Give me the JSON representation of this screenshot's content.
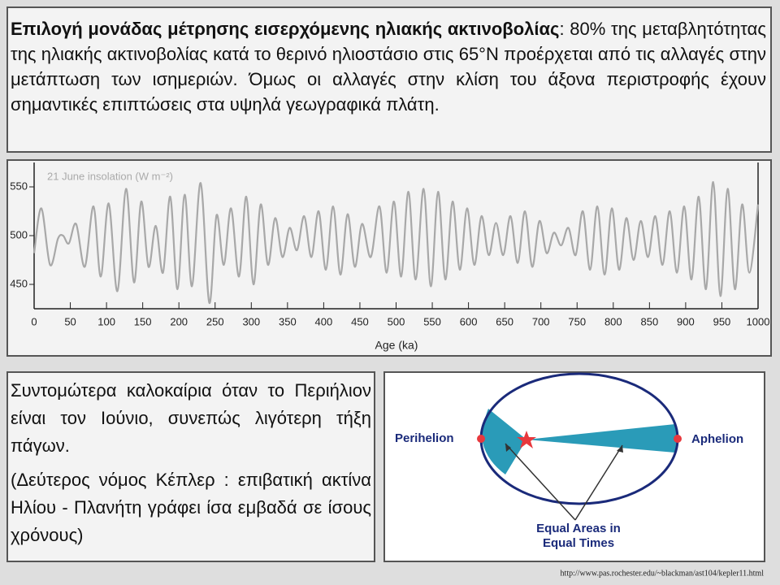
{
  "header": {
    "title": "Επιλογή μονάδας μέτρησης  εισερχόμενης ηλιακής ακτινοβολίας",
    "text": ": 80% της μεταβλητότητας της ηλιακής ακτινοβολίας κατά το θερινό ηλιοστάσιο στις 65°N προέρχεται από τις αλλαγές στην μετάπτωση των ισημεριών. Όμως οι αλλαγές στην κλίση του άξονα περιστροφής έχουν σημαντικές επιπτώσεις στα υψηλά γεωγραφικά πλάτη."
  },
  "chart_data": {
    "type": "line",
    "title": "21 June insolation (W m⁻²)",
    "x_label": "Age (ka)",
    "x": [
      0,
      10,
      22,
      33,
      40,
      48,
      58,
      70,
      82,
      92,
      103,
      115,
      127,
      138,
      148,
      158,
      168,
      178,
      188,
      198,
      208,
      218,
      230,
      242,
      252,
      262,
      272,
      283,
      293,
      303,
      313,
      323,
      333,
      343,
      353,
      363,
      373,
      383,
      393,
      403,
      413,
      423,
      433,
      443,
      453,
      465,
      477,
      487,
      497,
      507,
      517,
      527,
      538,
      548,
      558,
      568,
      578,
      588,
      598,
      608,
      618,
      628,
      638,
      648,
      658,
      668,
      678,
      688,
      698,
      708,
      718,
      728,
      738,
      748,
      758,
      768,
      778,
      788,
      798,
      808,
      818,
      828,
      838,
      848,
      858,
      868,
      878,
      888,
      898,
      908,
      918,
      928,
      938,
      948,
      958,
      968,
      978,
      988,
      1000
    ],
    "series": [
      {
        "name": "21 June insolation",
        "color": "#a8a8a8",
        "values": [
          482,
          528,
          470,
          497,
          500,
          492,
          512,
          468,
          530,
          458,
          533,
          443,
          548,
          452,
          535,
          468,
          510,
          462,
          540,
          445,
          542,
          448,
          554,
          431,
          521,
          470,
          528,
          458,
          540,
          450,
          532,
          470,
          518,
          478,
          508,
          485,
          520,
          478,
          525,
          465,
          530,
          460,
          522,
          468,
          512,
          478,
          530,
          462,
          535,
          458,
          545,
          455,
          548,
          448,
          545,
          455,
          535,
          465,
          528,
          470,
          520,
          480,
          513,
          480,
          520,
          472,
          525,
          468,
          515,
          482,
          503,
          490,
          508,
          480,
          525,
          465,
          530,
          460,
          528,
          465,
          518,
          475,
          515,
          478,
          520,
          470,
          525,
          462,
          530,
          455,
          540,
          445,
          555,
          438,
          548,
          445,
          532,
          462,
          532
        ]
      }
    ],
    "xlim": [
      0,
      1000
    ],
    "xticks": [
      0,
      50,
      100,
      150,
      200,
      250,
      300,
      350,
      400,
      450,
      500,
      550,
      600,
      650,
      700,
      750,
      800,
      850,
      900,
      950,
      1000
    ],
    "ylim": [
      425,
      575
    ],
    "yticks": [
      450,
      500,
      550
    ]
  },
  "notes": {
    "paragraphs": [
      "Συντομώτερα καλοκαίρια όταν το Περιήλιον είναι τον Ιούνιο, συνεπώς λιγότερη τήξη πάγων.",
      "(Δεύτερος νόμος Κέπλερ : επιβατική ακτίνα Ηλίου - Πλανήτη γράφει ίσα εμβαδά σε ίσους χρόνους)"
    ]
  },
  "diagram": {
    "perihelion": "Perihelion",
    "aphelion": "Aphelion",
    "caption_line1": "Equal Areas in",
    "caption_line2": "Equal Times",
    "source": "http://www.pas.rochester.edu/~blackman/ast104/kepler11.html"
  }
}
